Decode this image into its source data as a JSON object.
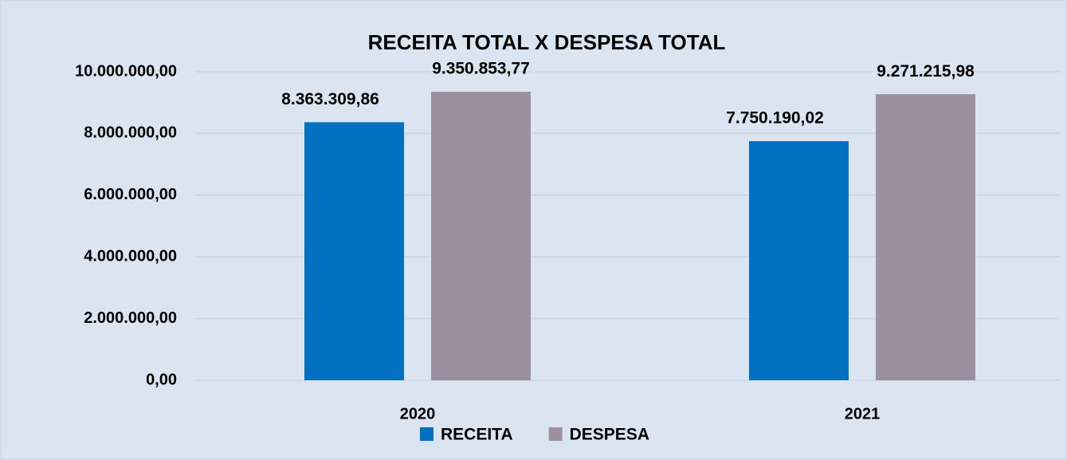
{
  "chart_data": {
    "type": "bar",
    "title": "RECEITA TOTAL X DESPESA TOTAL",
    "categories": [
      "2020",
      "2021"
    ],
    "series": [
      {
        "name": "RECEITA",
        "color": "#0070c0",
        "values": [
          8363309.86,
          7750190.02
        ],
        "value_labels": [
          "8.363.309,86",
          "7.750.190,02"
        ]
      },
      {
        "name": "DESPESA",
        "color": "#9c909f",
        "values": [
          9350853.77,
          9271215.98
        ],
        "value_labels": [
          "9.350.853,77",
          "9.271.215,98"
        ]
      }
    ],
    "ylim": [
      0,
      10000000
    ],
    "yticks": [
      {
        "value": 0,
        "label": "0,00"
      },
      {
        "value": 2000000,
        "label": "2.000.000,00"
      },
      {
        "value": 4000000,
        "label": "4.000.000,00"
      },
      {
        "value": 6000000,
        "label": "6.000.000,00"
      },
      {
        "value": 8000000,
        "label": "8.000.000,00"
      },
      {
        "value": 10000000,
        "label": "10.000.000,00"
      }
    ],
    "grid": true,
    "legend": "bottom"
  }
}
